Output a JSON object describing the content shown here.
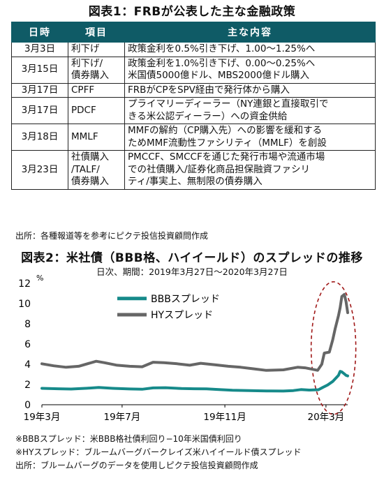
{
  "table_title": "図表1：FRBが公表した主な金融政策",
  "table": {
    "headers": [
      "日時",
      "項目",
      "主な内容"
    ],
    "rows": [
      {
        "date": "3月3日",
        "item": [
          "利下げ"
        ],
        "content": [
          "政策金利を0.5%引き下げ、1.00〜1.25%へ"
        ]
      },
      {
        "date": "3月15日",
        "item": [
          "利下げ/",
          "債券購入"
        ],
        "content": [
          "政策金利を1.0%引き下げ、0.00〜0.25%へ",
          "米国債5000億ドル、MBS2000億ドル購入"
        ]
      },
      {
        "date": "3月17日",
        "item": [
          "CPFF"
        ],
        "content": [
          "FRBがCPをSPV経由で発行体から購入"
        ]
      },
      {
        "date": "3月17日",
        "item": [
          "PDCF"
        ],
        "content": [
          "プライマリーディーラー（NY連銀と直接取引で",
          "きる米公認ディーラー）への資金供給"
        ]
      },
      {
        "date": "3月18日",
        "item": [
          "MMLF"
        ],
        "content": [
          "MMFの解約（CP購入先）への影響を緩和する",
          "ためMMF流動性ファシリティ（MMLF）を創設"
        ]
      },
      {
        "date": "3月23日",
        "item": [
          "社債購入",
          "/TALF/",
          "債券購入"
        ],
        "content": [
          "PMCCF、SMCCFを通じた発行市場や流通市場",
          "での社債購入/証券化商品担保融資ファシリ",
          "ティ/事実上、無制限の債券購入"
        ]
      }
    ]
  },
  "table_source": "出所：各種報道等を参考にピクテ投信投資顧問作成",
  "chart_title": "図表2：米社債（BBB格、ハイイールド）のスプレッドの推移",
  "chart_subtitle": "日次、期間：2019年3月27日〜2020年3月27日",
  "notes": [
    "※BBBスプレッド：米BBB格社債利回り−10年米国債利回り",
    "※HYスプレッド：ブルームバーグバークレイズ米ハイイールド債スプレッド",
    "出所：ブルームバーグのデータを使用しピクテ投信投資顧問作成"
  ],
  "chart_data": {
    "type": "line",
    "title": "図表2：米社債（BBB格、ハイイールド）のスプレッドの推移",
    "subtitle": "日次、期間：2019年3月27日〜2020年3月27日",
    "ylabel": "%",
    "ylim": [
      0,
      12
    ],
    "yticks": [
      0,
      2,
      4,
      6,
      8,
      10,
      12
    ],
    "xlim": [
      "2019-03-27",
      "2020-03-27"
    ],
    "xticks": [
      {
        "date": "2019-03-27",
        "label": "19年3月"
      },
      {
        "date": "2019-07-01",
        "label": "19年7月"
      },
      {
        "date": "2019-11-01",
        "label": "19年11月"
      },
      {
        "date": "2020-03-01",
        "label": "20年3月"
      }
    ],
    "legend_position": "top-left",
    "series": [
      {
        "name": "BBBスプレッド",
        "color": "#168a8a",
        "points": [
          [
            "2019-03-27",
            1.62
          ],
          [
            "2019-04-15",
            1.58
          ],
          [
            "2019-05-01",
            1.55
          ],
          [
            "2019-05-20",
            1.63
          ],
          [
            "2019-06-03",
            1.7
          ],
          [
            "2019-06-20",
            1.62
          ],
          [
            "2019-07-10",
            1.56
          ],
          [
            "2019-07-25",
            1.53
          ],
          [
            "2019-08-07",
            1.66
          ],
          [
            "2019-08-22",
            1.68
          ],
          [
            "2019-09-10",
            1.6
          ],
          [
            "2019-09-25",
            1.58
          ],
          [
            "2019-10-10",
            1.57
          ],
          [
            "2019-10-25",
            1.5
          ],
          [
            "2019-11-10",
            1.43
          ],
          [
            "2019-11-25",
            1.41
          ],
          [
            "2019-12-10",
            1.38
          ],
          [
            "2019-12-25",
            1.36
          ],
          [
            "2020-01-10",
            1.35
          ],
          [
            "2020-01-22",
            1.4
          ],
          [
            "2020-01-31",
            1.5
          ],
          [
            "2020-02-10",
            1.45
          ],
          [
            "2020-02-21",
            1.48
          ],
          [
            "2020-02-26",
            1.7
          ],
          [
            "2020-03-03",
            1.95
          ],
          [
            "2020-03-09",
            2.3
          ],
          [
            "2020-03-12",
            2.55
          ],
          [
            "2020-03-16",
            2.9
          ],
          [
            "2020-03-18",
            3.3
          ],
          [
            "2020-03-20",
            3.25
          ],
          [
            "2020-03-23",
            3.05
          ],
          [
            "2020-03-25",
            2.9
          ],
          [
            "2020-03-27",
            2.85
          ]
        ]
      },
      {
        "name": "HYスプレッド",
        "color": "#666666",
        "points": [
          [
            "2019-03-27",
            4.05
          ],
          [
            "2019-04-10",
            3.85
          ],
          [
            "2019-04-25",
            3.7
          ],
          [
            "2019-05-10",
            3.8
          ],
          [
            "2019-05-31",
            4.3
          ],
          [
            "2019-06-10",
            4.15
          ],
          [
            "2019-06-25",
            3.9
          ],
          [
            "2019-07-10",
            3.8
          ],
          [
            "2019-07-25",
            3.75
          ],
          [
            "2019-08-07",
            4.2
          ],
          [
            "2019-08-20",
            4.15
          ],
          [
            "2019-09-05",
            4.05
          ],
          [
            "2019-09-20",
            3.9
          ],
          [
            "2019-10-03",
            4.1
          ],
          [
            "2019-10-20",
            3.95
          ],
          [
            "2019-11-05",
            3.8
          ],
          [
            "2019-11-20",
            3.7
          ],
          [
            "2019-12-05",
            3.55
          ],
          [
            "2019-12-20",
            3.4
          ],
          [
            "2020-01-10",
            3.45
          ],
          [
            "2020-01-27",
            3.7
          ],
          [
            "2020-02-05",
            3.65
          ],
          [
            "2020-02-20",
            3.4
          ],
          [
            "2020-02-25",
            4.0
          ],
          [
            "2020-02-28",
            5.1
          ],
          [
            "2020-03-05",
            5.2
          ],
          [
            "2020-03-09",
            6.4
          ],
          [
            "2020-03-12",
            7.5
          ],
          [
            "2020-03-16",
            8.8
          ],
          [
            "2020-03-18",
            9.6
          ],
          [
            "2020-03-20",
            10.7
          ],
          [
            "2020-03-23",
            10.9
          ],
          [
            "2020-03-25",
            10.2
          ],
          [
            "2020-03-27",
            9.1
          ]
        ]
      }
    ]
  }
}
